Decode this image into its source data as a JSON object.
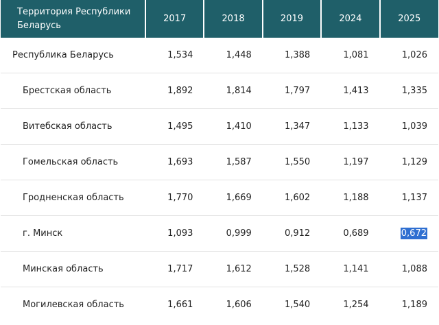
{
  "table": {
    "header": [
      "Территория Республики Беларусь",
      "2017",
      "2018",
      "2019",
      "2024",
      "2025"
    ],
    "rows": [
      [
        "Республика Беларусь",
        "1,534",
        "1,448",
        "1,388",
        "1,081",
        "1,026"
      ],
      [
        "Брестская область",
        "1,892",
        "1,814",
        "1,797",
        "1,413",
        "1,335"
      ],
      [
        "Витебская область",
        "1,495",
        "1,410",
        "1,347",
        "1,133",
        "1,039"
      ],
      [
        "Гомельская область",
        "1,693",
        "1,587",
        "1,550",
        "1,197",
        "1,129"
      ],
      [
        "Гродненская область",
        "1,770",
        "1,669",
        "1,602",
        "1,188",
        "1,137"
      ],
      [
        "г. Минск",
        "1,093",
        "0,999",
        "0,912",
        "0,689",
        "0,672"
      ],
      [
        "Минская область",
        "1,717",
        "1,612",
        "1,528",
        "1,141",
        "1,088"
      ],
      [
        "Могилевская область",
        "1,661",
        "1,606",
        "1,540",
        "1,254",
        "1,189"
      ]
    ]
  }
}
